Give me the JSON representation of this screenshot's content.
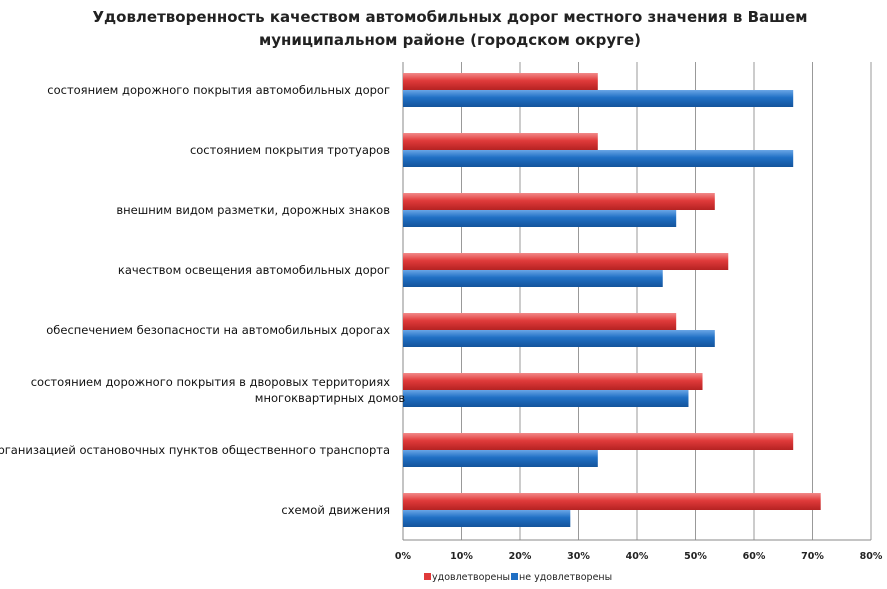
{
  "chart_data": {
    "type": "bar",
    "orientation": "horizontal",
    "title": "Удовлетворенность качеством автомобильных дорог местного значения в Вашем муниципальном районе (городском округе)",
    "categories": [
      "состоянием дорожного покрытия автомобильных дорог",
      "состоянием покрытия тротуаров",
      "внешним видом разметки, дорожных знаков",
      "качеством освещения автомобильных дорог",
      "обеспечением безопасности на автомобильных дорогах",
      "состоянием дорожного покрытия в дворовых территориях многоквартирных домов",
      "организацией остановочных пунктов общественного транспорта",
      "схемой движения"
    ],
    "series": [
      {
        "name": "удовлетворены",
        "color": "#e03a3a",
        "values": [
          33.3,
          33.3,
          53.3,
          55.6,
          46.7,
          51.2,
          66.7,
          71.4
        ]
      },
      {
        "name": "не удовлетворены",
        "color": "#1f6fc4",
        "values": [
          66.7,
          66.7,
          46.7,
          44.4,
          53.3,
          48.8,
          33.3,
          28.6
        ]
      }
    ],
    "xlim": [
      0,
      80
    ],
    "ticks": [
      "0%",
      "10%",
      "20%",
      "30%",
      "40%",
      "50%",
      "60%",
      "70%",
      "80%"
    ],
    "grid": true,
    "legend": "bottom"
  }
}
